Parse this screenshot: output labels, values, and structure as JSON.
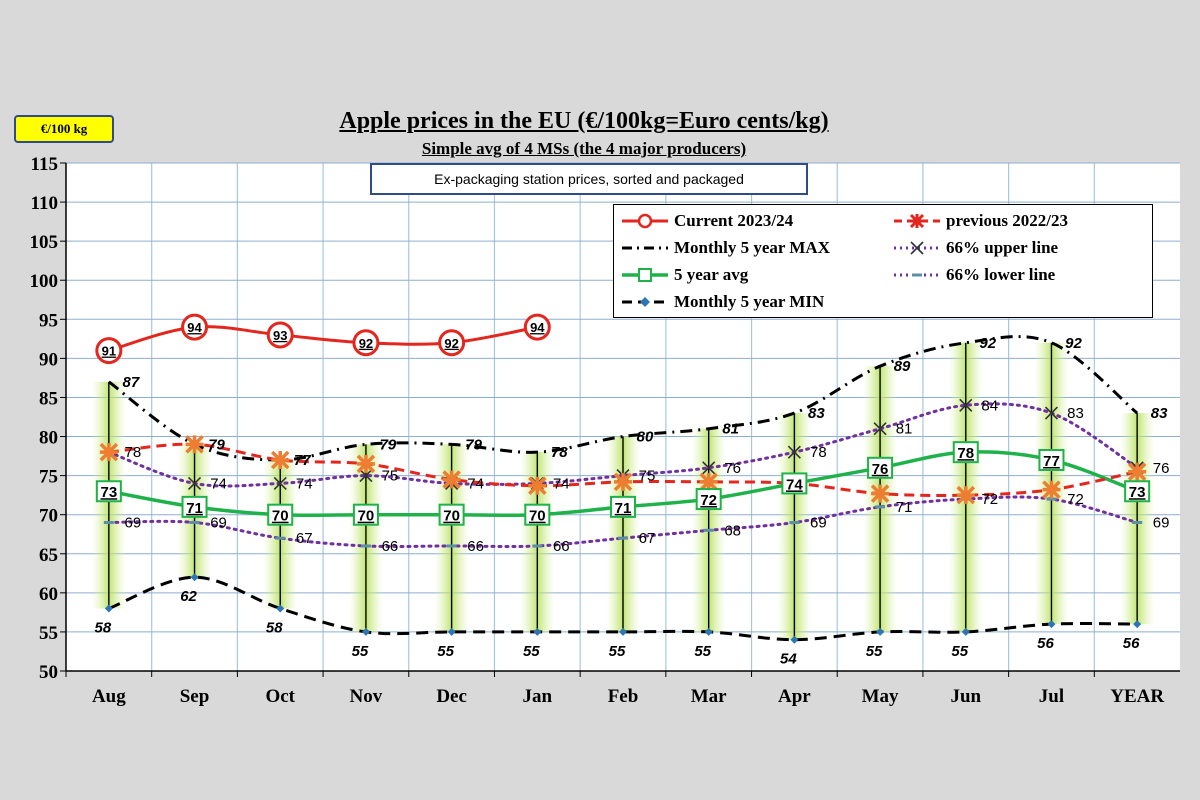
{
  "unit_badge": "€/100 kg",
  "subnote": "Ex-packaging station prices, sorted and packaged",
  "chart_data": {
    "type": "line",
    "title": "Apple prices in the EU (€/100kg=Euro cents/kg)",
    "subtitle": "Simple avg of 4 MSs (the 4 major producers)",
    "categories": [
      "Aug",
      "Sep",
      "Oct",
      "Nov",
      "Dec",
      "Jan",
      "Feb",
      "Mar",
      "Apr",
      "May",
      "Jun",
      "Jul",
      "YEAR"
    ],
    "ylim": [
      50,
      115
    ],
    "yticks": [
      50,
      55,
      60,
      65,
      70,
      75,
      80,
      85,
      90,
      95,
      100,
      105,
      110,
      115
    ],
    "grid": true,
    "legend_position": "top-right",
    "series": [
      {
        "name": "Current 2023/24",
        "values": [
          91,
          94,
          93,
          92,
          92,
          94,
          null,
          null,
          null,
          null,
          null,
          null,
          null
        ],
        "labels": [
          "91",
          "94",
          "93",
          "92",
          "92",
          "94"
        ],
        "color": "#e3261e"
      },
      {
        "name": "previous 2022/23",
        "values": [
          78,
          79,
          77,
          76.5,
          74.5,
          73.7,
          74.2,
          74.2,
          74,
          72.7,
          72.5,
          73.2,
          75.5
        ],
        "color": "#e3261e"
      },
      {
        "name": "Monthly 5 year MAX",
        "values": [
          87,
          79,
          77,
          79,
          79,
          78,
          80,
          81,
          83,
          89,
          92,
          92,
          83
        ],
        "labels": [
          "87",
          "79",
          "77",
          "79",
          "79",
          "78",
          "80",
          "81",
          "83",
          "89",
          "92",
          "92",
          "83"
        ],
        "color": "#000000"
      },
      {
        "name": "66% upper line",
        "values": [
          78,
          74,
          74,
          75,
          74,
          74,
          75,
          76,
          78,
          81,
          84,
          83,
          76
        ],
        "labels": [
          "78",
          "74",
          "74",
          "75",
          "74",
          "74",
          "75",
          "76",
          "78",
          "81",
          "84",
          "83",
          "76"
        ],
        "color": "#7030a0"
      },
      {
        "name": "5 year avg",
        "values": [
          73,
          71,
          70,
          70,
          70,
          70,
          71,
          72,
          74,
          76,
          78,
          77,
          73
        ],
        "labels": [
          "73",
          "71",
          "70",
          "70",
          "70",
          "70",
          "71",
          "72",
          "74",
          "76",
          "78",
          "77",
          "73"
        ],
        "color": "#1fb24a"
      },
      {
        "name": "66% lower line",
        "values": [
          69,
          69,
          67,
          66,
          66,
          66,
          67,
          68,
          69,
          71,
          72,
          72,
          69
        ],
        "labels": [
          "69",
          "69",
          "67",
          "66",
          "66",
          "66",
          "67",
          "68",
          "69",
          "71",
          "72",
          "72",
          "69"
        ],
        "color": "#7030a0"
      },
      {
        "name": "Monthly 5 year MIN",
        "values": [
          58,
          62,
          58,
          55,
          55,
          55,
          55,
          55,
          54,
          55,
          55,
          56,
          56
        ],
        "labels": [
          "58",
          "62",
          "58",
          "55",
          "55",
          "55",
          "55",
          "55",
          "54",
          "55",
          "55",
          "56",
          "56"
        ],
        "color": "#000000"
      }
    ]
  }
}
